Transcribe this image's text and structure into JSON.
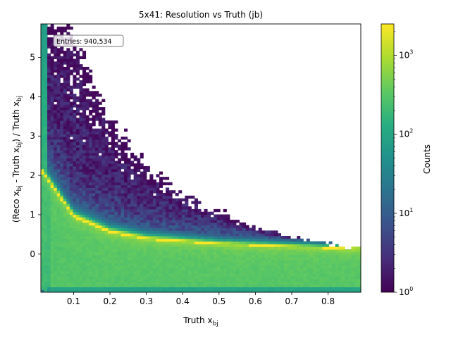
{
  "chart_data": {
    "type": "heatmap",
    "title": "5x41: Resolution vs Truth (jb)",
    "xlabel_main": "Truth x",
    "xlabel_sub": "bj",
    "ylabel_parts": [
      {
        "text": "(Reco x",
        "sub": false
      },
      {
        "text": "bj",
        "sub": true
      },
      {
        "text": " - Truth x",
        "sub": false
      },
      {
        "text": "bj",
        "sub": true
      },
      {
        "text": ") / Truth x",
        "sub": false
      },
      {
        "text": "bj",
        "sub": true
      }
    ],
    "xlim": [
      0.01,
      0.89
    ],
    "ylim": [
      -0.97,
      5.85
    ],
    "xticks": [
      0.1,
      0.2,
      0.3,
      0.4,
      0.5,
      0.6,
      0.7,
      0.8
    ],
    "xtick_labels": [
      "0.1",
      "0.2",
      "0.3",
      "0.4",
      "0.5",
      "0.6",
      "0.7",
      "0.8"
    ],
    "yticks": [
      0,
      1,
      2,
      3,
      4,
      5
    ],
    "ytick_labels": [
      "0",
      "1",
      "2",
      "3",
      "4",
      "5"
    ],
    "colorbar": {
      "label": "Counts",
      "scale": "log",
      "range": [
        1,
        2500
      ],
      "ticks": [
        1,
        10,
        100,
        1000
      ],
      "tick_bases": [
        "10",
        "10",
        "10",
        "10"
      ],
      "tick_exps": [
        "0",
        "1",
        "2",
        "3"
      ],
      "colormap": "viridis"
    },
    "annotation": "Entries: 940,534",
    "bins": {
      "nx": 100,
      "ny": 100
    },
    "ridge_y_at_x": [
      {
        "x": 0.05,
        "y": 1.6
      },
      {
        "x": 0.1,
        "y": 0.95
      },
      {
        "x": 0.2,
        "y": 0.55
      },
      {
        "x": 0.3,
        "y": 0.38
      },
      {
        "x": 0.5,
        "y": 0.25
      },
      {
        "x": 0.8,
        "y": 0.15
      }
    ],
    "max_y_at_x": [
      {
        "x": 0.1,
        "y": 5.8
      },
      {
        "x": 0.2,
        "y": 3.8
      },
      {
        "x": 0.3,
        "y": 2.5
      },
      {
        "x": 0.4,
        "y": 1.7
      },
      {
        "x": 0.5,
        "y": 1.2
      },
      {
        "x": 0.6,
        "y": 0.7
      },
      {
        "x": 0.7,
        "y": 0.45
      },
      {
        "x": 0.85,
        "y": 0.2
      }
    ]
  }
}
